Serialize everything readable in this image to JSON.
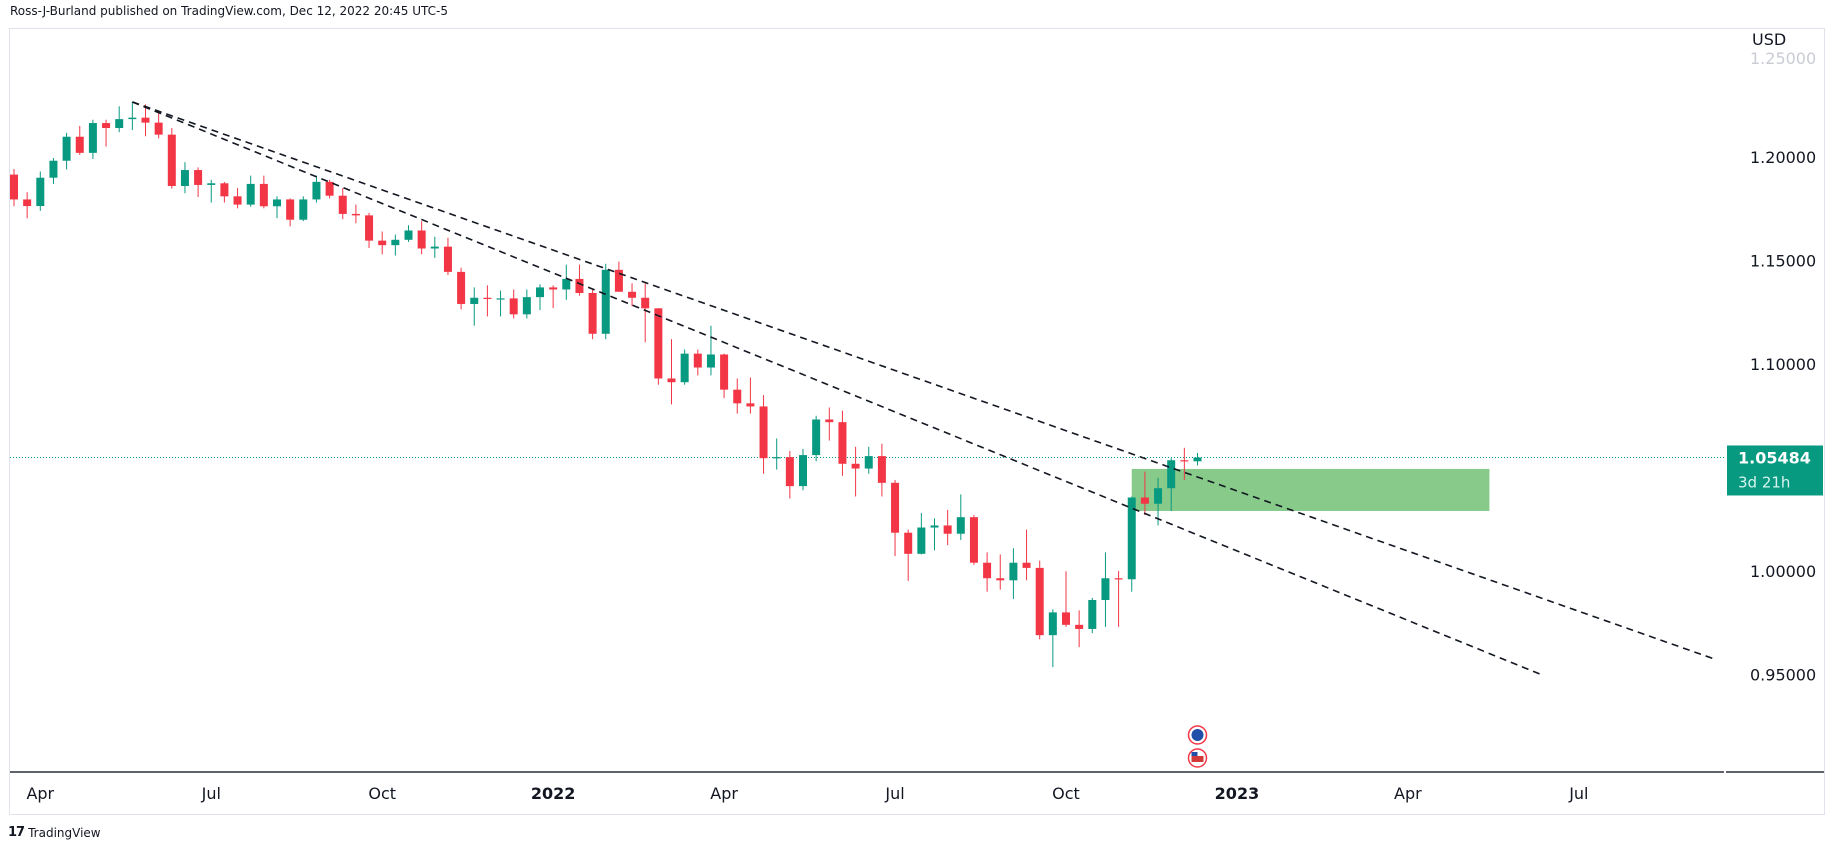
{
  "header": {
    "text": "Ross-J-Burland published on TradingView.com, Dec 12, 2022 20:45 UTC-5"
  },
  "footer": {
    "brand": "TradingView"
  },
  "colors": {
    "up": "#089981",
    "down": "#f23645",
    "zone": "#81c784",
    "trend": "#131722"
  },
  "chart_data": {
    "type": "candlestick",
    "title": "",
    "currency": "USD",
    "interval": "weekly",
    "first_week": "2021-03-22",
    "ylim": [
      0.905,
      1.262
    ],
    "yticks": [
      "1.25000",
      "1.20000",
      "1.15000",
      "1.10000",
      "1.00000",
      "0.95000"
    ],
    "ytick_values": [
      1.25,
      1.2,
      1.15,
      1.1,
      1.0,
      0.95
    ],
    "xticks": [
      {
        "label": "Apr",
        "week": 2
      },
      {
        "label": "Jul",
        "week": 15
      },
      {
        "label": "Oct",
        "week": 28
      },
      {
        "label": "2022",
        "week": 41
      },
      {
        "label": "Apr",
        "week": 54
      },
      {
        "label": "Jul",
        "week": 67
      },
      {
        "label": "Oct",
        "week": 80
      },
      {
        "label": "2023",
        "week": 93
      },
      {
        "label": "Apr",
        "week": 106
      },
      {
        "label": "Jul",
        "week": 119
      }
    ],
    "last_price": {
      "value": "1.05484",
      "countdown": "3d 21h",
      "price": 1.05484
    },
    "ohlc": [
      [
        1.1915,
        1.1942,
        1.1762,
        1.1795
      ],
      [
        1.1795,
        1.183,
        1.1704,
        1.1763
      ],
      [
        1.1763,
        1.193,
        1.174,
        1.19
      ],
      [
        1.19,
        1.1995,
        1.187,
        1.1982
      ],
      [
        1.1982,
        1.2117,
        1.194,
        1.2098
      ],
      [
        1.2098,
        1.215,
        1.201,
        1.202
      ],
      [
        1.202,
        1.218,
        1.199,
        1.2164
      ],
      [
        1.2164,
        1.218,
        1.205,
        1.214
      ],
      [
        1.214,
        1.2245,
        1.212,
        1.2183
      ],
      [
        1.2183,
        1.2266,
        1.213,
        1.219
      ],
      [
        1.219,
        1.2254,
        1.21,
        1.2166
      ],
      [
        1.2166,
        1.222,
        1.209,
        1.2108
      ],
      [
        1.2108,
        1.214,
        1.1847,
        1.186
      ],
      [
        1.186,
        1.1975,
        1.1825,
        1.1937
      ],
      [
        1.1937,
        1.195,
        1.1807,
        1.1865
      ],
      [
        1.1865,
        1.189,
        1.178,
        1.1873
      ],
      [
        1.1873,
        1.188,
        1.178,
        1.181
      ],
      [
        1.181,
        1.185,
        1.1752,
        1.177
      ],
      [
        1.177,
        1.191,
        1.176,
        1.187
      ],
      [
        1.187,
        1.191,
        1.1752,
        1.1762
      ],
      [
        1.1762,
        1.181,
        1.1705,
        1.1795
      ],
      [
        1.1795,
        1.18,
        1.1665,
        1.1697
      ],
      [
        1.1697,
        1.181,
        1.169,
        1.1795
      ],
      [
        1.1795,
        1.191,
        1.178,
        1.188
      ],
      [
        1.188,
        1.189,
        1.18,
        1.1813
      ],
      [
        1.1813,
        1.185,
        1.17,
        1.1725
      ],
      [
        1.1725,
        1.177,
        1.168,
        1.1718
      ],
      [
        1.1718,
        1.173,
        1.156,
        1.1596
      ],
      [
        1.1596,
        1.164,
        1.153,
        1.1574
      ],
      [
        1.1574,
        1.1625,
        1.1524,
        1.16
      ],
      [
        1.16,
        1.167,
        1.159,
        1.1645
      ],
      [
        1.1645,
        1.169,
        1.153,
        1.1558
      ],
      [
        1.1558,
        1.1615,
        1.1513,
        1.1567
      ],
      [
        1.1567,
        1.161,
        1.143,
        1.1445
      ],
      [
        1.1445,
        1.1465,
        1.1264,
        1.129
      ],
      [
        1.129,
        1.137,
        1.1185,
        1.132
      ],
      [
        1.132,
        1.138,
        1.123,
        1.1315
      ],
      [
        1.1315,
        1.1355,
        1.123,
        1.1317
      ],
      [
        1.1317,
        1.136,
        1.122,
        1.124
      ],
      [
        1.124,
        1.136,
        1.122,
        1.1323
      ],
      [
        1.1323,
        1.1385,
        1.126,
        1.137
      ],
      [
        1.137,
        1.138,
        1.127,
        1.136
      ],
      [
        1.136,
        1.148,
        1.131,
        1.1411
      ],
      [
        1.1411,
        1.148,
        1.133,
        1.1343
      ],
      [
        1.1343,
        1.136,
        1.112,
        1.1146
      ],
      [
        1.1146,
        1.1484,
        1.112,
        1.1455
      ],
      [
        1.1455,
        1.1495,
        1.138,
        1.1349
      ],
      [
        1.1349,
        1.139,
        1.128,
        1.132
      ],
      [
        1.132,
        1.139,
        1.1105,
        1.1269
      ],
      [
        1.1269,
        1.127,
        1.09,
        1.093
      ],
      [
        1.093,
        1.112,
        1.0805,
        1.0912
      ],
      [
        1.0912,
        1.107,
        1.09,
        1.105
      ],
      [
        1.105,
        1.107,
        1.0945,
        1.0983
      ],
      [
        1.0983,
        1.1185,
        1.0945,
        1.1046
      ],
      [
        1.1046,
        1.105,
        1.0835,
        1.0876
      ],
      [
        1.0876,
        1.093,
        1.076,
        1.081
      ],
      [
        1.081,
        1.0935,
        1.076,
        1.0795
      ],
      [
        1.0795,
        1.085,
        1.047,
        1.0545
      ],
      [
        1.0545,
        1.064,
        1.049,
        1.055
      ],
      [
        1.055,
        1.058,
        1.035,
        1.041
      ],
      [
        1.041,
        1.059,
        1.039,
        1.056
      ],
      [
        1.056,
        1.075,
        1.053,
        1.0732
      ],
      [
        1.0732,
        1.079,
        1.063,
        1.0719
      ],
      [
        1.0719,
        1.0775,
        1.046,
        1.0518
      ],
      [
        1.0518,
        1.06,
        1.036,
        1.0495
      ],
      [
        1.0495,
        1.06,
        1.047,
        1.0555
      ],
      [
        1.0555,
        1.0615,
        1.036,
        1.0426
      ],
      [
        1.0426,
        1.044,
        1.0072,
        1.0185
      ],
      [
        1.0185,
        1.02,
        0.9952,
        1.0083
      ],
      [
        1.0083,
        1.028,
        1.008,
        1.021
      ],
      [
        1.021,
        1.0255,
        1.01,
        1.022
      ],
      [
        1.022,
        1.0295,
        1.0125,
        1.018
      ],
      [
        1.018,
        1.037,
        1.015,
        1.026
      ],
      [
        1.026,
        1.027,
        1.003,
        1.004
      ],
      [
        1.004,
        1.009,
        0.99,
        0.9965
      ],
      [
        0.9965,
        1.008,
        0.991,
        0.9955
      ],
      [
        0.9955,
        1.011,
        0.9865,
        1.004
      ],
      [
        1.004,
        1.02,
        0.9955,
        1.0015
      ],
      [
        1.0015,
        1.005,
        0.967,
        0.969
      ],
      [
        0.969,
        0.9815,
        0.9536,
        0.98
      ],
      [
        0.98,
        0.9999,
        0.973,
        0.974
      ],
      [
        0.974,
        0.981,
        0.9632,
        0.972
      ],
      [
        0.972,
        0.987,
        0.97,
        0.986
      ],
      [
        0.986,
        1.009,
        0.973,
        0.9965
      ],
      [
        0.9965,
        1.0,
        0.973,
        0.996
      ],
      [
        0.996,
        1.036,
        0.99,
        1.0355
      ],
      [
        1.0355,
        1.048,
        1.027,
        1.0325
      ],
      [
        1.0325,
        1.045,
        1.022,
        1.04
      ],
      [
        1.04,
        1.0545,
        1.029,
        1.0535
      ],
      [
        1.0535,
        1.0595,
        1.044,
        1.053
      ],
      [
        1.053,
        1.057,
        1.051,
        1.0548
      ]
    ],
    "annotations": {
      "trendlines": [
        {
          "name": "upper-trendline",
          "from": {
            "week": 9,
            "price": 1.2266
          },
          "to": {
            "week": 129.3,
            "price": 0.9575
          }
        },
        {
          "name": "lower-trendline",
          "from": {
            "week": 9,
            "price": 1.2266
          },
          "to": {
            "week": 116.2,
            "price": 0.9498
          }
        }
      ],
      "zone": {
        "from_week": 85,
        "to_week": 112.2,
        "top": 1.0493,
        "bottom": 1.029
      },
      "events": [
        {
          "name": "eu-event-icon",
          "week": 90
        },
        {
          "name": "us-event-icon",
          "week": 90
        }
      ]
    }
  }
}
